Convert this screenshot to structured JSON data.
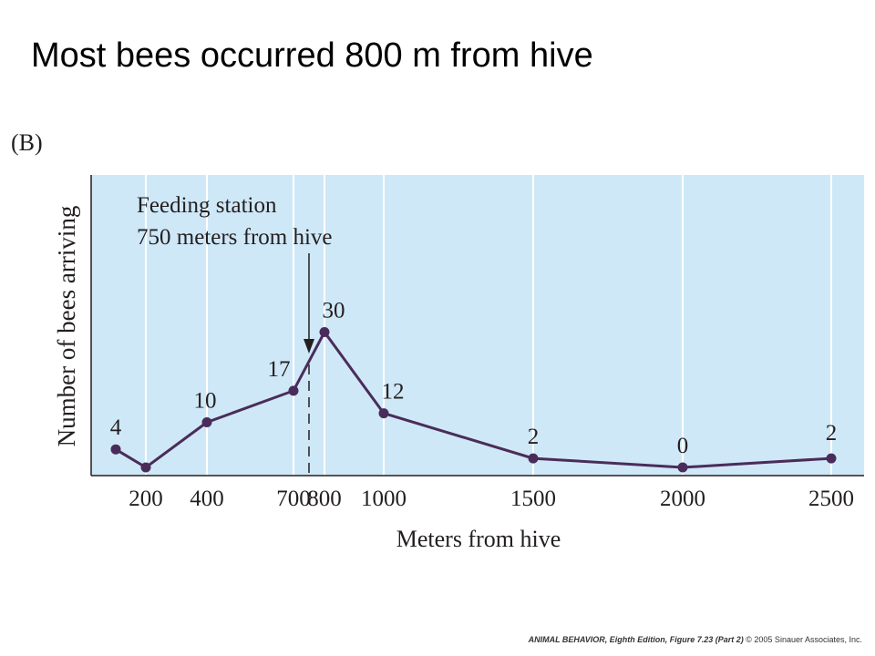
{
  "slide": {
    "title": "Most bees occurred 800 m from hive",
    "panel_label": "(B)",
    "credit_bold": "ANIMAL BEHAVIOR, Eighth Edition, Figure 7.23 (Part 2)",
    "credit_rest": "© 2005 Sinauer Associates, Inc."
  },
  "colors": {
    "plot_background": "#cfe8f7",
    "gridline": "#ffffff",
    "series_line": "#4a2c5a",
    "text": "#231f20"
  },
  "chart_data": {
    "type": "line",
    "xlabel": "Meters from hive",
    "ylabel": "Number of bees arriving",
    "x_ticks": [
      "200",
      "400",
      "700",
      "800",
      "1000",
      "1500",
      "2000",
      "2500"
    ],
    "series": [
      {
        "points": [
          {
            "x": "100",
            "y": 4,
            "label": "4"
          },
          {
            "x": "200",
            "y": 0,
            "label": ""
          },
          {
            "x": "400",
            "y": 10,
            "label": "10"
          },
          {
            "x": "700",
            "y": 17,
            "label": "17"
          },
          {
            "x": "800",
            "y": 30,
            "label": "30"
          },
          {
            "x": "1000",
            "y": 12,
            "label": "12"
          },
          {
            "x": "1500",
            "y": 2,
            "label": "2"
          },
          {
            "x": "2000",
            "y": 0,
            "label": "0"
          },
          {
            "x": "2500",
            "y": 2,
            "label": "2"
          }
        ]
      }
    ],
    "annotation": {
      "line1": "Feeding station",
      "line2": "750 meters from hive",
      "x": 750
    },
    "y_axis_ticks_shown": false,
    "grid": "vertical lines at tick positions"
  }
}
